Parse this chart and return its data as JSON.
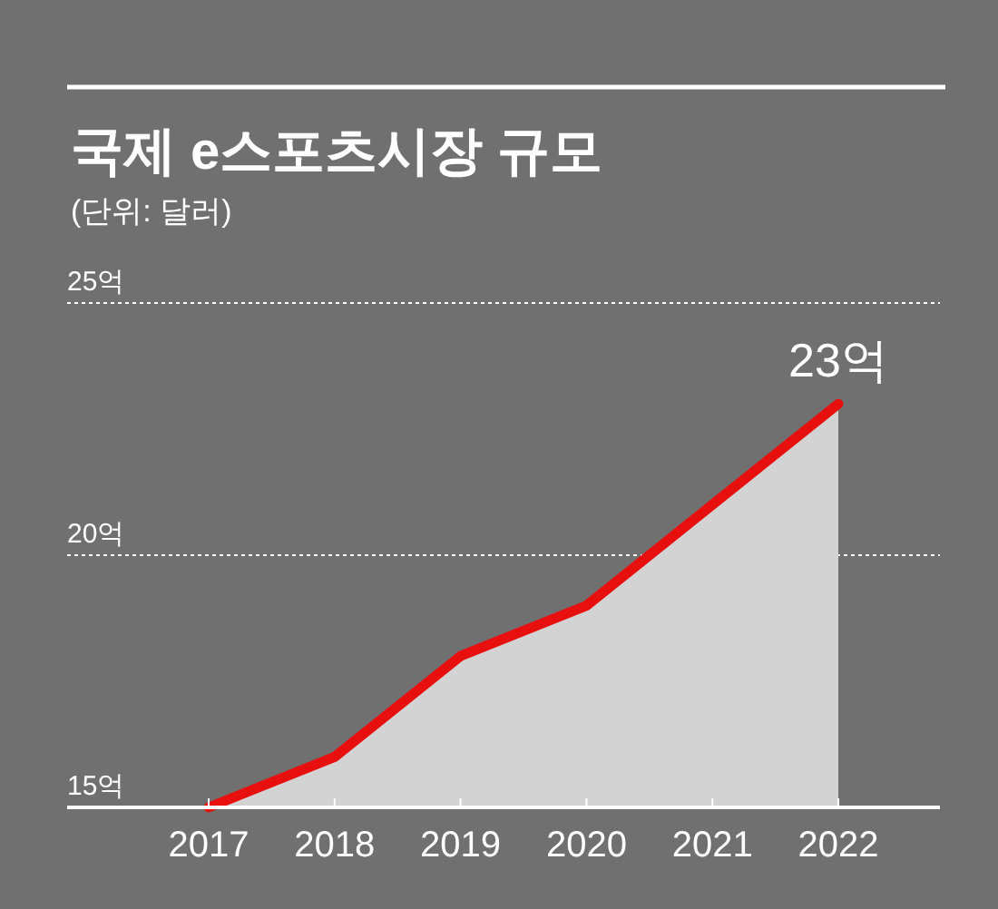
{
  "chart_data": {
    "type": "area",
    "title": "국제 e스포츠시장 규모",
    "subtitle": "(단위: 달러)",
    "categories": [
      "2017",
      "2018",
      "2019",
      "2020",
      "2021",
      "2022"
    ],
    "series": [
      {
        "color": "#e8100e",
        "values": [
          15,
          16,
          18,
          19,
          21,
          23
        ],
        "value_labels": [
          null,
          null,
          null,
          null,
          null,
          "23억"
        ]
      }
    ],
    "ylim": [
      15,
      25
    ],
    "yticks": [
      {
        "value": 15,
        "label": "15억"
      },
      {
        "value": 20,
        "label": "20억"
      },
      {
        "value": 25,
        "label": "25억"
      }
    ],
    "grid": "y"
  }
}
